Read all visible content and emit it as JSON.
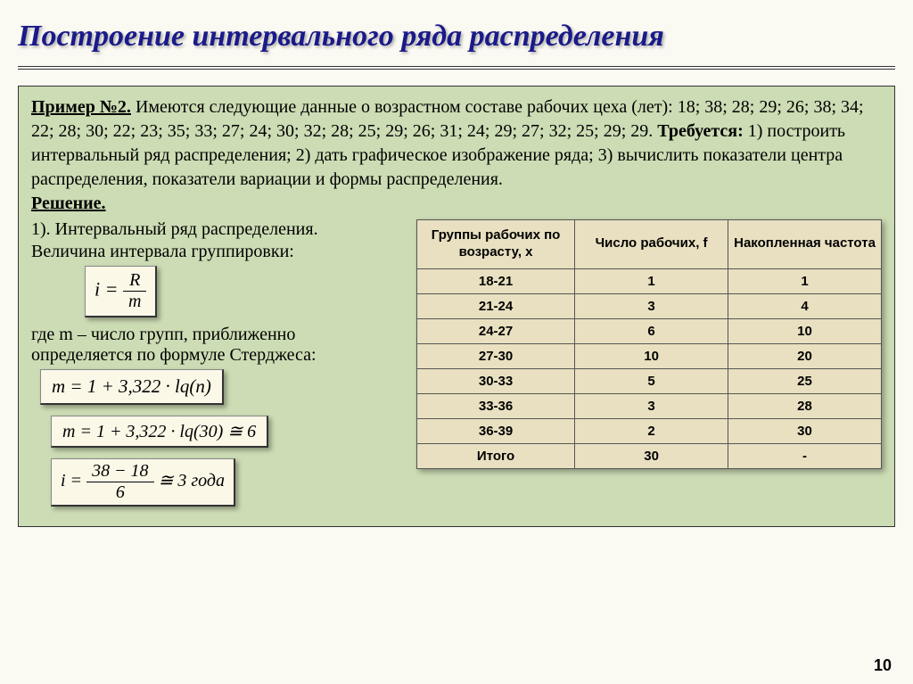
{
  "title": "Построение интервального ряда распределения",
  "problem": {
    "label": "Пример №2.",
    "text_part1": " Имеются следующие данные о возрастном составе рабочих цеха (лет): 18; 38; 28; 29; 26; 38; 34; 22; 28; 30; 22; 23; 35; 33; 27; 24; 30; 32; 28; 25; 29; 26; 31; 24; 29; 27; 32; 25; 29; 29. ",
    "requires_label": "Требуется:",
    "text_part2": " 1) построить интервальный ряд распределения; 2) дать графическое изображение ряда; 3) вычислить показатели центра распределения, показатели вариации и формы распределения."
  },
  "solution_label": "Решение.",
  "left": {
    "line1": "1). Интервальный ряд распределения.",
    "line2": "Величина интервала группировки:",
    "formula1": {
      "lhs": "i =",
      "num": "R",
      "den": "m"
    },
    "line3a": "где m – число групп, приближенно",
    "line3b": "определяется по формуле Стерджеса:",
    "formula2": "m = 1 + 3,322 · lq(n)",
    "formula3": "m = 1 + 3,322 · lq(30) ≅ 6",
    "formula4": {
      "lhs": "i =",
      "num": "38 − 18",
      "den": "6",
      "rhs": " ≅ 3  года"
    }
  },
  "table": {
    "headers": [
      "Группы рабочих по возрасту, x",
      "Число рабочих, f",
      "Накопленная частота"
    ],
    "rows": [
      [
        "18-21",
        "1",
        "1"
      ],
      [
        "21-24",
        "3",
        "4"
      ],
      [
        "24-27",
        "6",
        "10"
      ],
      [
        "27-30",
        "10",
        "20"
      ],
      [
        "30-33",
        "5",
        "25"
      ],
      [
        "33-36",
        "3",
        "28"
      ],
      [
        "36-39",
        "2",
        "30"
      ],
      [
        "Итого",
        "30",
        "-"
      ]
    ],
    "col_widths": [
      "34%",
      "33%",
      "33%"
    ]
  },
  "page_number": "10",
  "colors": {
    "page_bg": "#faf9f2",
    "green_box_bg": "#ccdcb4",
    "table_bg": "#e8e0c0",
    "title_color": "#1a1a8a",
    "formula_bg": "#fcf8e8"
  }
}
